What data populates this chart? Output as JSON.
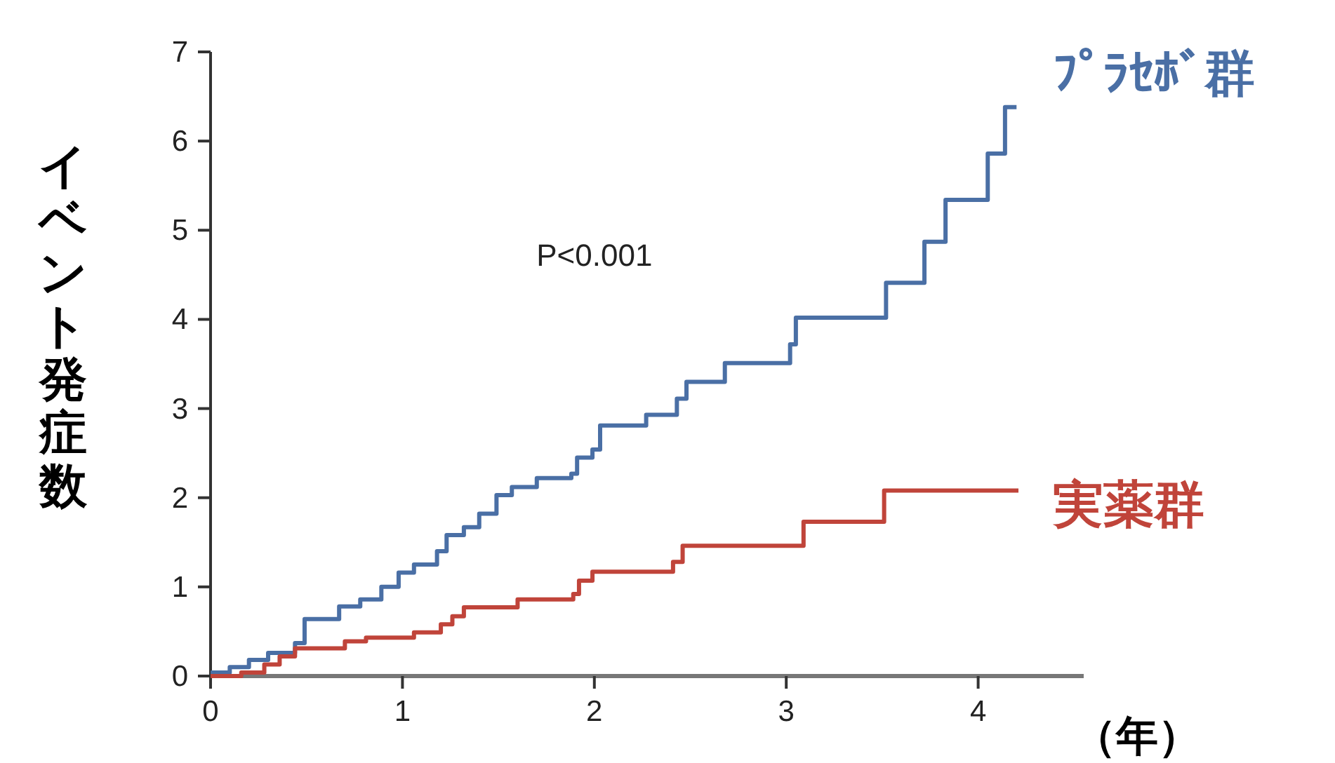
{
  "chart_data": {
    "type": "step",
    "ylabel": "イベント発症数",
    "xlabel": "（年）",
    "annotations": [
      "P<0.001"
    ],
    "xlim": [
      0,
      4.55
    ],
    "ylim": [
      0,
      7
    ],
    "xticks": [
      0,
      1,
      2,
      3,
      4
    ],
    "yticks": [
      0,
      1,
      2,
      3,
      4,
      5,
      6,
      7
    ],
    "grid": false,
    "legend": false,
    "marker": "none",
    "line_style": "solid",
    "series": [
      {
        "name": "ﾌﾟﾗｾﾎﾞ群",
        "color": "#4a6fa5",
        "x": [
          0,
          0.1,
          0.2,
          0.3,
          0.44,
          0.49,
          0.67,
          0.78,
          0.89,
          0.98,
          1.06,
          1.18,
          1.23,
          1.32,
          1.4,
          1.49,
          1.57,
          1.7,
          1.88,
          1.91,
          1.99,
          2.03,
          2.27,
          2.43,
          2.48,
          2.68,
          3.02,
          3.05,
          3.52,
          3.72,
          3.83,
          4.05,
          4.14,
          4.2
        ],
        "values": [
          0.04,
          0.1,
          0.18,
          0.26,
          0.37,
          0.64,
          0.78,
          0.86,
          1.0,
          1.16,
          1.25,
          1.4,
          1.58,
          1.67,
          1.82,
          2.03,
          2.12,
          2.22,
          2.27,
          2.45,
          2.54,
          2.81,
          2.93,
          3.11,
          3.3,
          3.51,
          3.72,
          4.02,
          4.41,
          4.87,
          5.34,
          5.86,
          6.38,
          6.38
        ]
      },
      {
        "name": "実薬群",
        "color": "#c0443a",
        "x": [
          0,
          0.16,
          0.28,
          0.36,
          0.44,
          0.7,
          0.81,
          1.06,
          1.2,
          1.26,
          1.32,
          1.6,
          1.89,
          1.92,
          1.99,
          2.41,
          2.46,
          3.09,
          3.51,
          4.21
        ],
        "values": [
          0,
          0.04,
          0.13,
          0.22,
          0.31,
          0.39,
          0.43,
          0.49,
          0.58,
          0.67,
          0.77,
          0.86,
          0.92,
          1.07,
          1.17,
          1.28,
          1.46,
          1.73,
          2.08,
          2.08
        ]
      }
    ]
  }
}
